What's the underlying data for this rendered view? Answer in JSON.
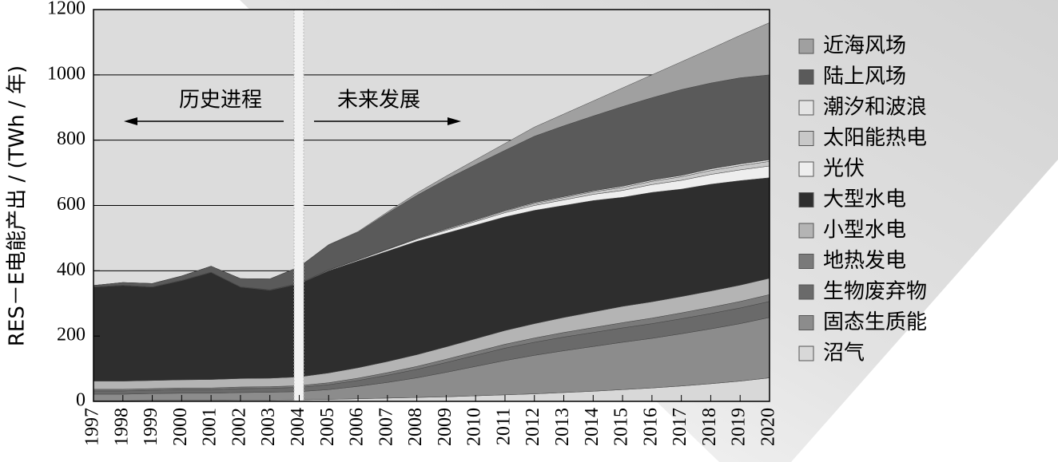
{
  "chart_data": {
    "type": "stacked-area",
    "y_label": "RES－E电能产出 / (TWh / 年)",
    "annotations": [
      "历史进程",
      "未来发展"
    ],
    "x": [
      1997,
      1998,
      1999,
      2000,
      2001,
      2002,
      2003,
      2004,
      2005,
      2006,
      2007,
      2008,
      2009,
      2010,
      2011,
      2012,
      2013,
      2014,
      2015,
      2016,
      2017,
      2018,
      2019,
      2020
    ],
    "xlim": [
      1997,
      2020
    ],
    "xticks": [
      1997,
      1998,
      1999,
      2000,
      2001,
      2002,
      2003,
      2004,
      2005,
      2006,
      2007,
      2008,
      2009,
      2010,
      2011,
      2012,
      2013,
      2014,
      2015,
      2016,
      2017,
      2018,
      2019,
      2020
    ],
    "ylim": [
      0,
      1200
    ],
    "yticks": [
      0,
      200,
      400,
      600,
      800,
      1000,
      1200
    ],
    "grid": true,
    "series": [
      {
        "name": "沼气",
        "color": "#d8d8d8",
        "values": [
          2,
          2,
          3,
          3,
          3,
          4,
          4,
          5,
          6,
          8,
          10,
          12,
          14,
          17,
          20,
          23,
          27,
          31,
          36,
          41,
          47,
          54,
          62,
          72
        ]
      },
      {
        "name": "固态生质能",
        "color": "#8c8c8c",
        "values": [
          20,
          20,
          21,
          22,
          22,
          23,
          24,
          25,
          30,
          38,
          48,
          60,
          75,
          90,
          105,
          118,
          128,
          137,
          145,
          152,
          160,
          168,
          176,
          185
        ]
      },
      {
        "name": "生物废弃物",
        "color": "#6a6a6a",
        "values": [
          10,
          10,
          10,
          11,
          11,
          12,
          12,
          13,
          15,
          18,
          22,
          26,
          30,
          34,
          38,
          40,
          42,
          43,
          44,
          45,
          46,
          47,
          48,
          49
        ]
      },
      {
        "name": "地热发电",
        "color": "#7a7a7a",
        "values": [
          5,
          5,
          5,
          5,
          5,
          5,
          5,
          5,
          6,
          7,
          8,
          9,
          10,
          11,
          12,
          13,
          14,
          15,
          16,
          17,
          18,
          19,
          20,
          21
        ]
      },
      {
        "name": "小型水电",
        "color": "#b4b4b4",
        "values": [
          25,
          25,
          25,
          25,
          26,
          26,
          26,
          27,
          30,
          32,
          34,
          36,
          38,
          40,
          42,
          44,
          46,
          48,
          50,
          50,
          50,
          50,
          50,
          50
        ]
      },
      {
        "name": "大型水电",
        "color": "#2e2e2e",
        "values": [
          288,
          293,
          286,
          304,
          328,
          280,
          269,
          285,
          313,
          327,
          338,
          347,
          348,
          348,
          348,
          347,
          343,
          341,
          334,
          335,
          329,
          327,
          320,
          308
        ]
      },
      {
        "name": "光伏",
        "color": "#eeeeee",
        "values": [
          0,
          0,
          0,
          0,
          0,
          0,
          1,
          1,
          2,
          3,
          5,
          7,
          9,
          11,
          13,
          15,
          17,
          19,
          21,
          24,
          27,
          30,
          33,
          36
        ]
      },
      {
        "name": "太阳能热电",
        "color": "#c8c8c8",
        "values": [
          0,
          0,
          0,
          0,
          0,
          0,
          0,
          0,
          0,
          0,
          1,
          2,
          3,
          4,
          5,
          6,
          7,
          8,
          9,
          10,
          11,
          12,
          13,
          14
        ]
      },
      {
        "name": "潮汐和波浪",
        "color": "#e4e4e4",
        "values": [
          1,
          1,
          1,
          1,
          1,
          1,
          1,
          1,
          1,
          1,
          1,
          1,
          2,
          2,
          2,
          3,
          3,
          3,
          4,
          4,
          4,
          5,
          5,
          5
        ]
      },
      {
        "name": "陆上风场",
        "color": "#5a5a5a",
        "values": [
          4,
          8,
          10,
          13,
          18,
          25,
          33,
          50,
          76,
          84,
          109,
          131,
          151,
          168,
          184,
          203,
          217,
          229,
          244,
          252,
          263,
          263,
          264,
          260
        ]
      },
      {
        "name": "近海风场",
        "color": "#a0a0a0",
        "values": [
          0,
          0,
          0,
          0,
          0,
          0,
          0,
          0,
          1,
          2,
          4,
          7,
          10,
          15,
          21,
          28,
          36,
          46,
          57,
          70,
          85,
          105,
          130,
          160
        ]
      }
    ]
  }
}
